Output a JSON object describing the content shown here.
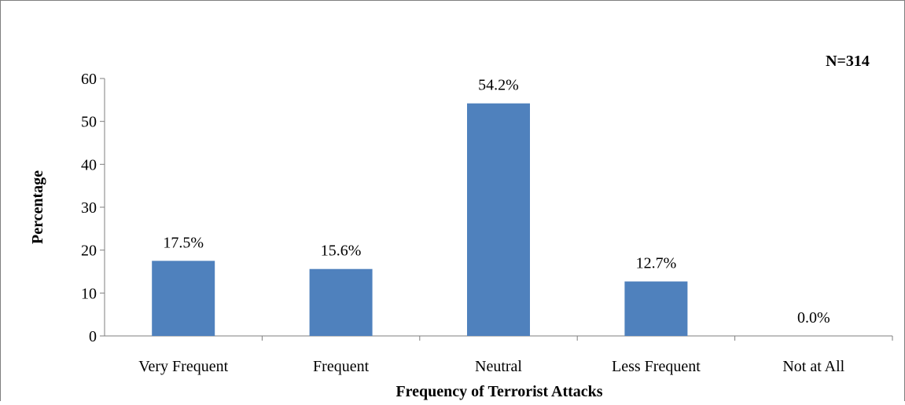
{
  "chart_data": {
    "type": "bar",
    "title": "",
    "xlabel": "Frequency of Terrorist Attacks",
    "ylabel": "Percentage",
    "annotation": "N=314",
    "categories": [
      "Very Frequent",
      "Frequent",
      "Neutral",
      "Less Frequent",
      "Not at All"
    ],
    "values": [
      17.5,
      15.6,
      54.2,
      12.7,
      0.0
    ],
    "data_labels": [
      "17.5%",
      "15.6%",
      "54.2%",
      "12.7%",
      "0.0%"
    ],
    "yticks": [
      "0",
      "10",
      "20",
      "30",
      "40",
      "50",
      "60"
    ],
    "ylim": [
      0,
      60
    ],
    "grid": false,
    "legend": "none",
    "bar_color": "#4f81bd"
  }
}
